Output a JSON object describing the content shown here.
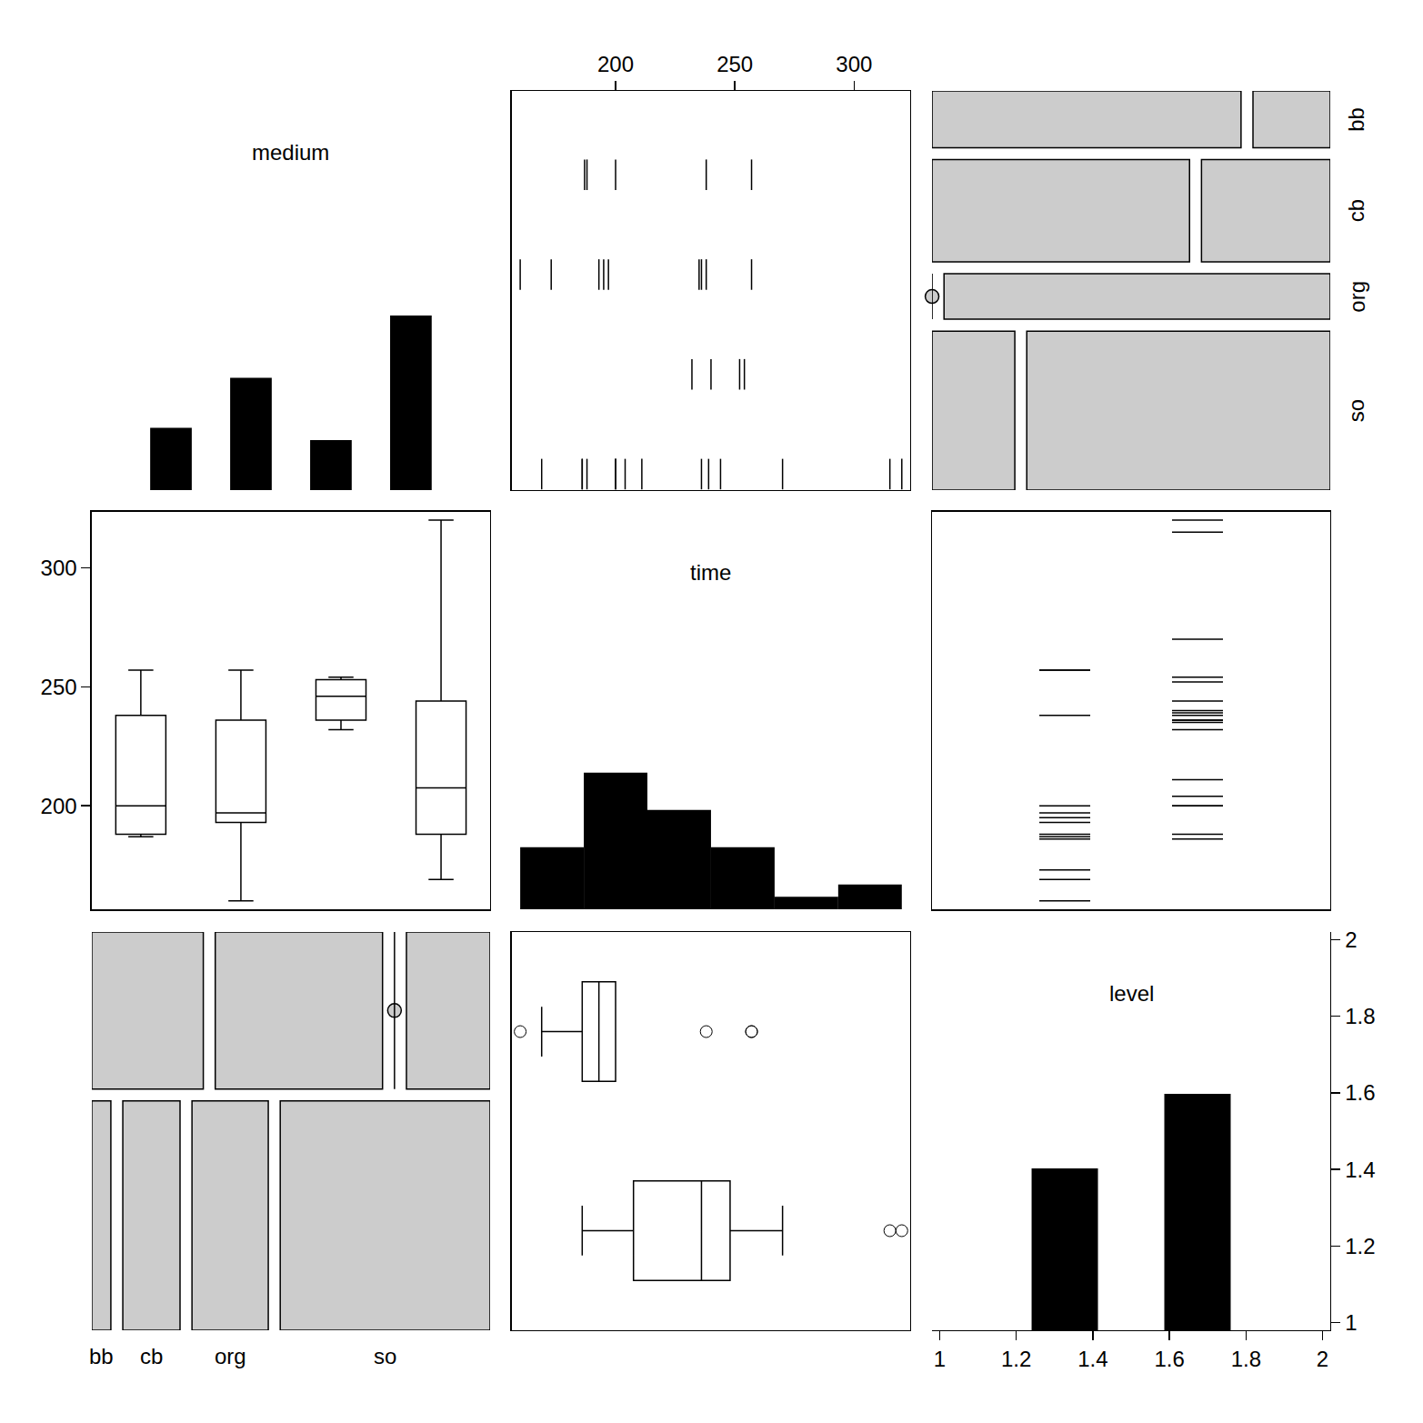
{
  "chart_data": {
    "type": "pairs",
    "color": "#000000",
    "variables": [
      {
        "name": "medium",
        "levels": [
          "bb",
          "cb",
          "org",
          "so"
        ],
        "values": [
          "bb",
          "bb",
          "bb",
          "bb",
          "bb",
          "cb",
          "cb",
          "cb",
          "cb",
          "cb",
          "cb",
          "cb",
          "cb",
          "cb",
          "org",
          "org",
          "org",
          "org",
          "so",
          "so",
          "so",
          "so",
          "so",
          "so",
          "so",
          "so",
          "so",
          "so",
          "so",
          "so",
          "so",
          "so"
        ]
      },
      {
        "name": "time",
        "lim": [
          156.5,
          323.5
        ],
        "ticks": [
          200,
          250,
          300
        ],
        "bins": [
          160,
          186.67,
          213.33,
          240,
          266.67,
          293.33,
          320
        ],
        "values": [
          187,
          188,
          200,
          238,
          257,
          160,
          173,
          193,
          195,
          197,
          235,
          236,
          238,
          257,
          232,
          240,
          252,
          254,
          169,
          186,
          186,
          188,
          200,
          200,
          204,
          211,
          236,
          239,
          244,
          270,
          315,
          320
        ]
      },
      {
        "name": "level",
        "levels": [
          1,
          2
        ],
        "lim": [
          0.98,
          2.02
        ],
        "ticks": [
          1,
          1.2,
          1.4,
          1.6,
          1.8,
          2
        ],
        "values": [
          1,
          1,
          2,
          1,
          1,
          1,
          1,
          1,
          1,
          1,
          2,
          2,
          2,
          1,
          2,
          2,
          2,
          2,
          1,
          1,
          2,
          2,
          1,
          2,
          2,
          2,
          2,
          2,
          2,
          2,
          2,
          2
        ]
      }
    ]
  }
}
